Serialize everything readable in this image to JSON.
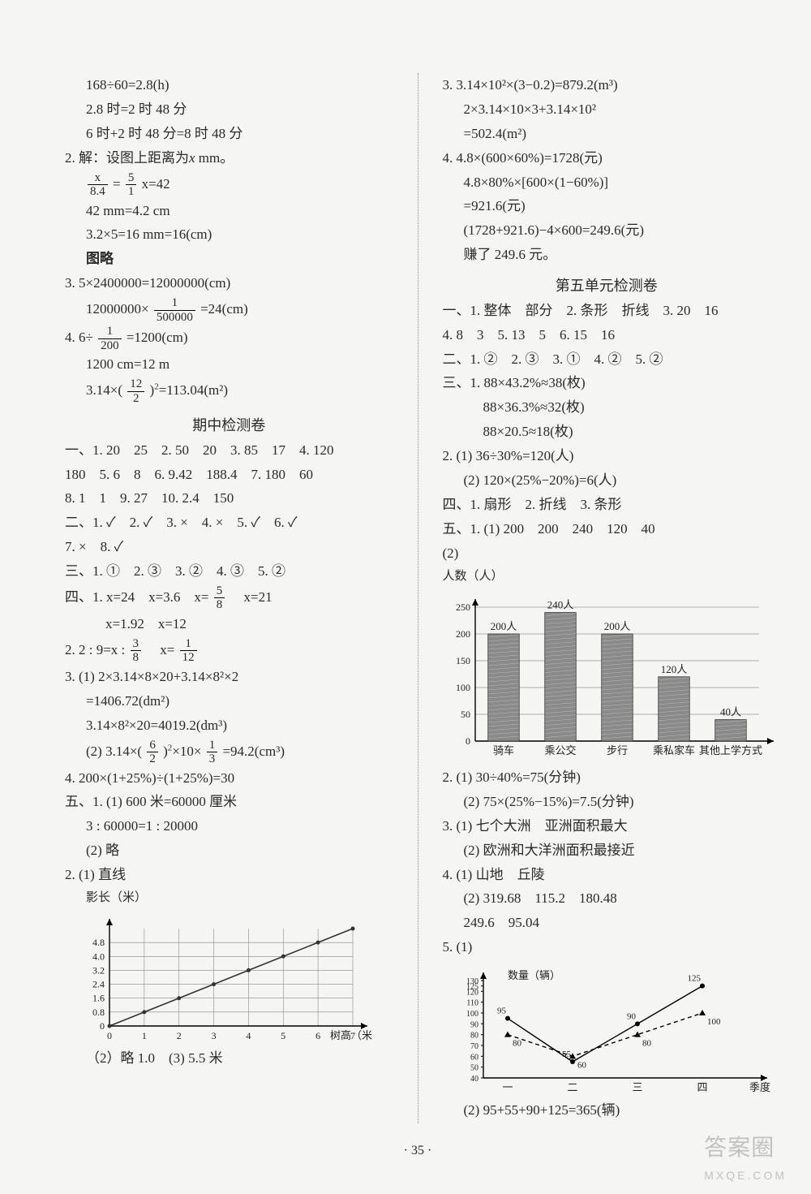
{
  "left": {
    "l1": "168÷60=2.8(h)",
    "l2": "2.8 时=2 时 48 分",
    "l3": "6 时+2 时 48 分=8 时 48 分",
    "l4a": "2. 解：设图上距离为",
    "l4b": "x",
    "l4c": " mm。",
    "frac1n": "x",
    "frac1d": "8.4",
    "frac2n": "5",
    "frac2d": "1",
    "frac_eq": "=",
    "frac_ans": "  x=42",
    "l6": "42 mm=4.2 cm",
    "l7": "3.2×5=16 mm=16(cm)",
    "l8": "图略",
    "l9": "3. 5×2400000=12000000(cm)",
    "l10a": "12000000×",
    "l10fn": "1",
    "l10fd": "500000",
    "l10b": "=24(cm)",
    "l11a": "4. 6÷",
    "l11fn": "1",
    "l11fd": "200",
    "l11b": "=1200(cm)",
    "l12": "1200 cm=12 m",
    "l13a": "3.14×",
    "l13p1": "(",
    "l13fn": "12",
    "l13fd": "2",
    "l13p2": ")",
    "l13sup": "2",
    "l13b": "=113.04(m²)",
    "heading_mid": "期中检测卷",
    "m1": "一、1. 20　25　2. 50　20　3. 85　17　4. 120",
    "m2": "180　5. 6　8　6. 9.42　188.4　7. 180　60",
    "m3": "8. 1　1　9. 27　10. 2.4　150",
    "m4": "二、1. ✓　2. ✓　3. ×　4. ×　5. ✓　6. ✓",
    "m5": "7. ×　8. ✓",
    "m6": "三、1. ①　2. ③　3. ②　4. ③　5. ②",
    "m7a": "四、1. x=24　x=3.6　x=",
    "m7fn": "5",
    "m7fd": "8",
    "m7b": "　x=21",
    "m8": "x=1.92　x=12",
    "m9a": "2. 2 : 9=x : ",
    "m9fn": "3",
    "m9fd": "8",
    "m9m": "　x=",
    "m9fn2": "1",
    "m9fd2": "12",
    "m10": "3. (1) 2×3.14×8×20+3.14×8²×2",
    "m11": "=1406.72(dm²)",
    "m12": "3.14×8²×20=4019.2(dm³)",
    "m13a": "(2) 3.14×",
    "m13p1": "(",
    "m13fn": "6",
    "m13fd": "2",
    "m13p2": ")",
    "m13sup": "2",
    "m13b": "×10×",
    "m13fn2": "1",
    "m13fd2": "3",
    "m13c": "=94.2(cm³)",
    "m14": "4. 200×(1+25%)÷(1+25%)=30",
    "m15": "五、1. (1) 600 米=60000 厘米",
    "m16": "3 : 60000=1 : 20000",
    "m17": "(2) 略",
    "m18": "2. (1) 直线",
    "chart1": {
      "ylabel": "影长（米）",
      "xlabel": "树高（米）",
      "y_ticks": [
        "0",
        "0.8",
        "1.6",
        "2.4",
        "3.2",
        "4.0",
        "4.8"
      ],
      "x_ticks": [
        "0",
        "1",
        "2",
        "3",
        "4",
        "5",
        "6",
        "7"
      ],
      "points_x": [
        0,
        1,
        2,
        3,
        4,
        5,
        6,
        7
      ],
      "points_y": [
        0,
        0.8,
        1.6,
        2.4,
        3.2,
        4.0,
        4.8,
        5.6
      ],
      "line_color": "#333333",
      "grid_color": "#888888",
      "bg": "#ffffff"
    },
    "m19": "（2）略  1.0　(3) 5.5 米"
  },
  "right": {
    "r1": "3. 3.14×10²×(3−0.2)=879.2(m³)",
    "r2": "2×3.14×10×3+3.14×10²",
    "r3": "=502.4(m²)",
    "r4": "4. 4.8×(600×60%)=1728(元)",
    "r5": "4.8×80%×[600×(1−60%)]",
    "r6": "=921.6(元)",
    "r7": "(1728+921.6)−4×600=249.6(元)",
    "r8": "赚了 249.6 元。",
    "heading_u5": "第五单元检测卷",
    "u1": "一、1. 整体　部分　2. 条形　折线　3. 20　16",
    "u2": "4. 8　3　5. 13　5　6. 15　16",
    "u3": "二、1. ②　2. ③　3. ①　4. ②　5. ②",
    "u4": "三、1. 88×43.2%≈38(枚)",
    "u5": "88×36.3%≈32(枚)",
    "u6": "88×20.5≈18(枚)",
    "u7": "2. (1) 36÷30%=120(人)",
    "u8": "(2) 120×(25%−20%)=6(人)",
    "u9": "四、1. 扇形　2. 折线　3. 条形",
    "u10": "五、1. (1) 200　200　240　120　40",
    "u11": "(2)",
    "bar_chart": {
      "ylabel": "人数（人）",
      "y_ticks": [
        "0",
        "50",
        "100",
        "150",
        "200",
        "250"
      ],
      "categories": [
        "骑车",
        "乘公交",
        "步行",
        "乘私家车",
        "其他上学方式"
      ],
      "values": [
        200,
        240,
        200,
        120,
        40
      ],
      "labels": [
        "200人",
        "240人",
        "200人",
        "120人",
        "40人"
      ],
      "bar_color": "#8a8a8a",
      "grid_color": "#666666",
      "bg": "#ffffff"
    },
    "v1": "2. (1) 30÷40%=75(分钟)",
    "v2": "(2) 75×(25%−15%)=7.5(分钟)",
    "v3": "3. (1) 七个大洲　亚洲面积最大",
    "v4": "(2) 欧洲和大洋洲面积最接近",
    "v5": "4. (1) 山地　丘陵",
    "v6": "(2) 319.68　115.2　180.48",
    "v7": "249.6　95.04",
    "v8": "5. (1)",
    "line_chart": {
      "ylabel": "数量（辆）",
      "y_ticks": [
        "40",
        "50",
        "60",
        "70",
        "80",
        "90",
        "100",
        "110",
        "120",
        "125",
        "130"
      ],
      "x_ticks": [
        "一",
        "二",
        "三",
        "四",
        "季度"
      ],
      "series": [
        {
          "label": "s1",
          "values": [
            95,
            55,
            90,
            125
          ],
          "style": "solid",
          "markers": "circle"
        },
        {
          "label": "s2",
          "values": [
            80,
            60,
            80,
            100
          ],
          "style": "dashed",
          "markers": "triangle"
        }
      ],
      "point_labels_a": [
        "95",
        "55",
        "90",
        "125"
      ],
      "point_labels_b": [
        "80",
        "60",
        "80",
        "100"
      ],
      "grid_color": "#666666",
      "bg": "#ffffff"
    },
    "v9": "(2) 95+55+90+125=365(辆)"
  },
  "footer": "· 35 ·",
  "wm1": "答案圈",
  "wm2": "MXQE.COM"
}
